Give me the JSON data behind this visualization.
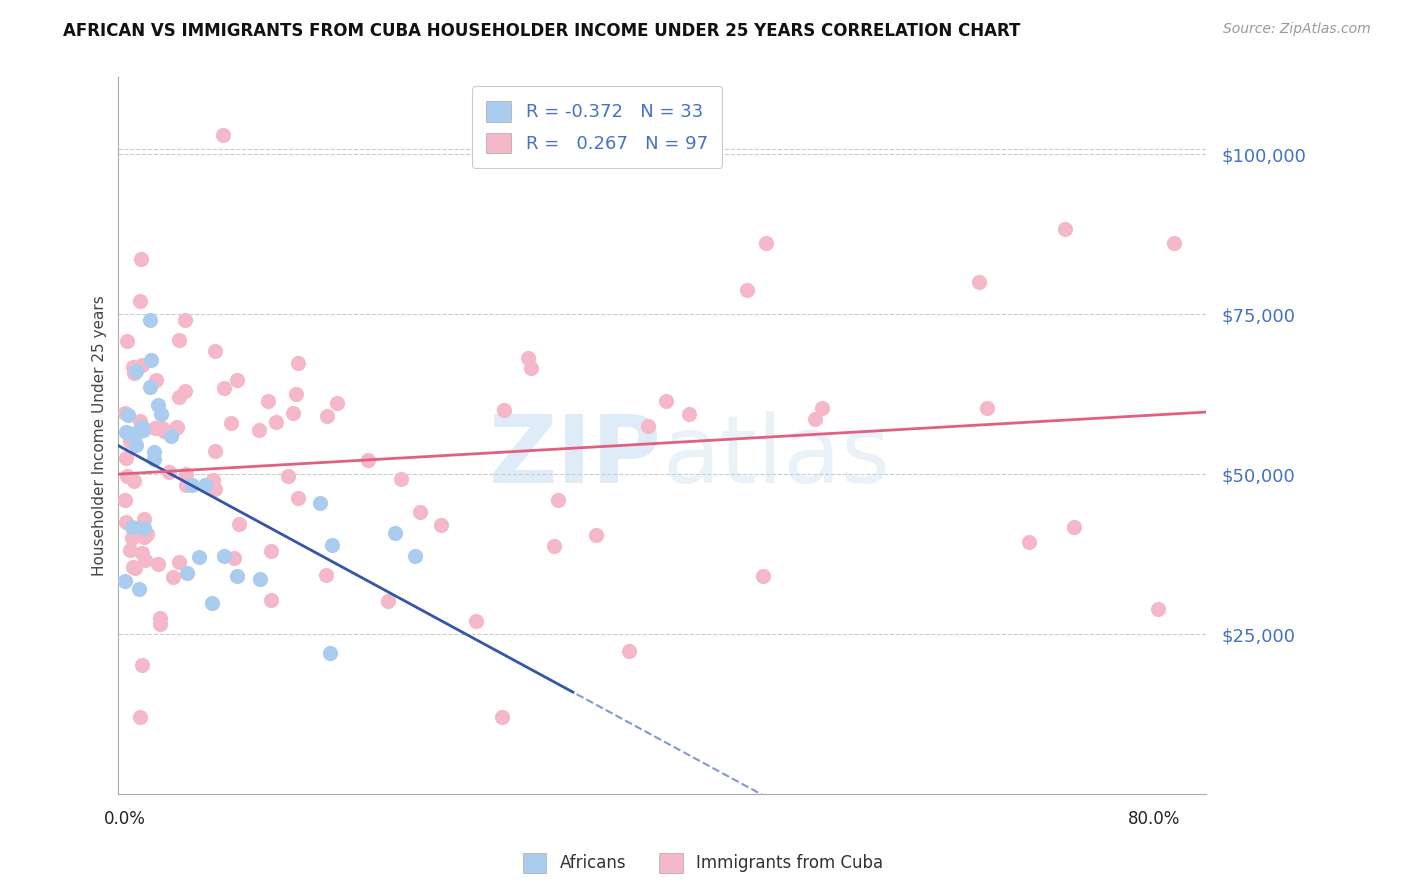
{
  "title": "AFRICAN VS IMMIGRANTS FROM CUBA HOUSEHOLDER INCOME UNDER 25 YEARS CORRELATION CHART",
  "source": "Source: ZipAtlas.com",
  "ylabel": "Householder Income Under 25 years",
  "ymin": 0,
  "ymax": 112000,
  "xmin": -0.005,
  "xmax": 0.84,
  "legend_r1": "R = -0.372   N = 33",
  "legend_r2": "R =   0.267   N = 97",
  "legend_label1": "Africans",
  "legend_label2": "Immigrants from Cuba",
  "blue_scatter_color": "#aaccee",
  "pink_scatter_color": "#f5b8c8",
  "blue_line_color": "#3355aa",
  "pink_line_color": "#e06080",
  "watermark_color": "#c8dff0",
  "background_color": "#ffffff",
  "ytick_vals": [
    25000,
    50000,
    75000,
    100000
  ],
  "ytick_labels": [
    "$25,000",
    "$50,000",
    "$75,000",
    "$100,000"
  ],
  "title_fontsize": 12,
  "source_fontsize": 10,
  "af_intercept": 52000,
  "af_slope": -85000,
  "cu_intercept": 44000,
  "cu_slope": 32000
}
